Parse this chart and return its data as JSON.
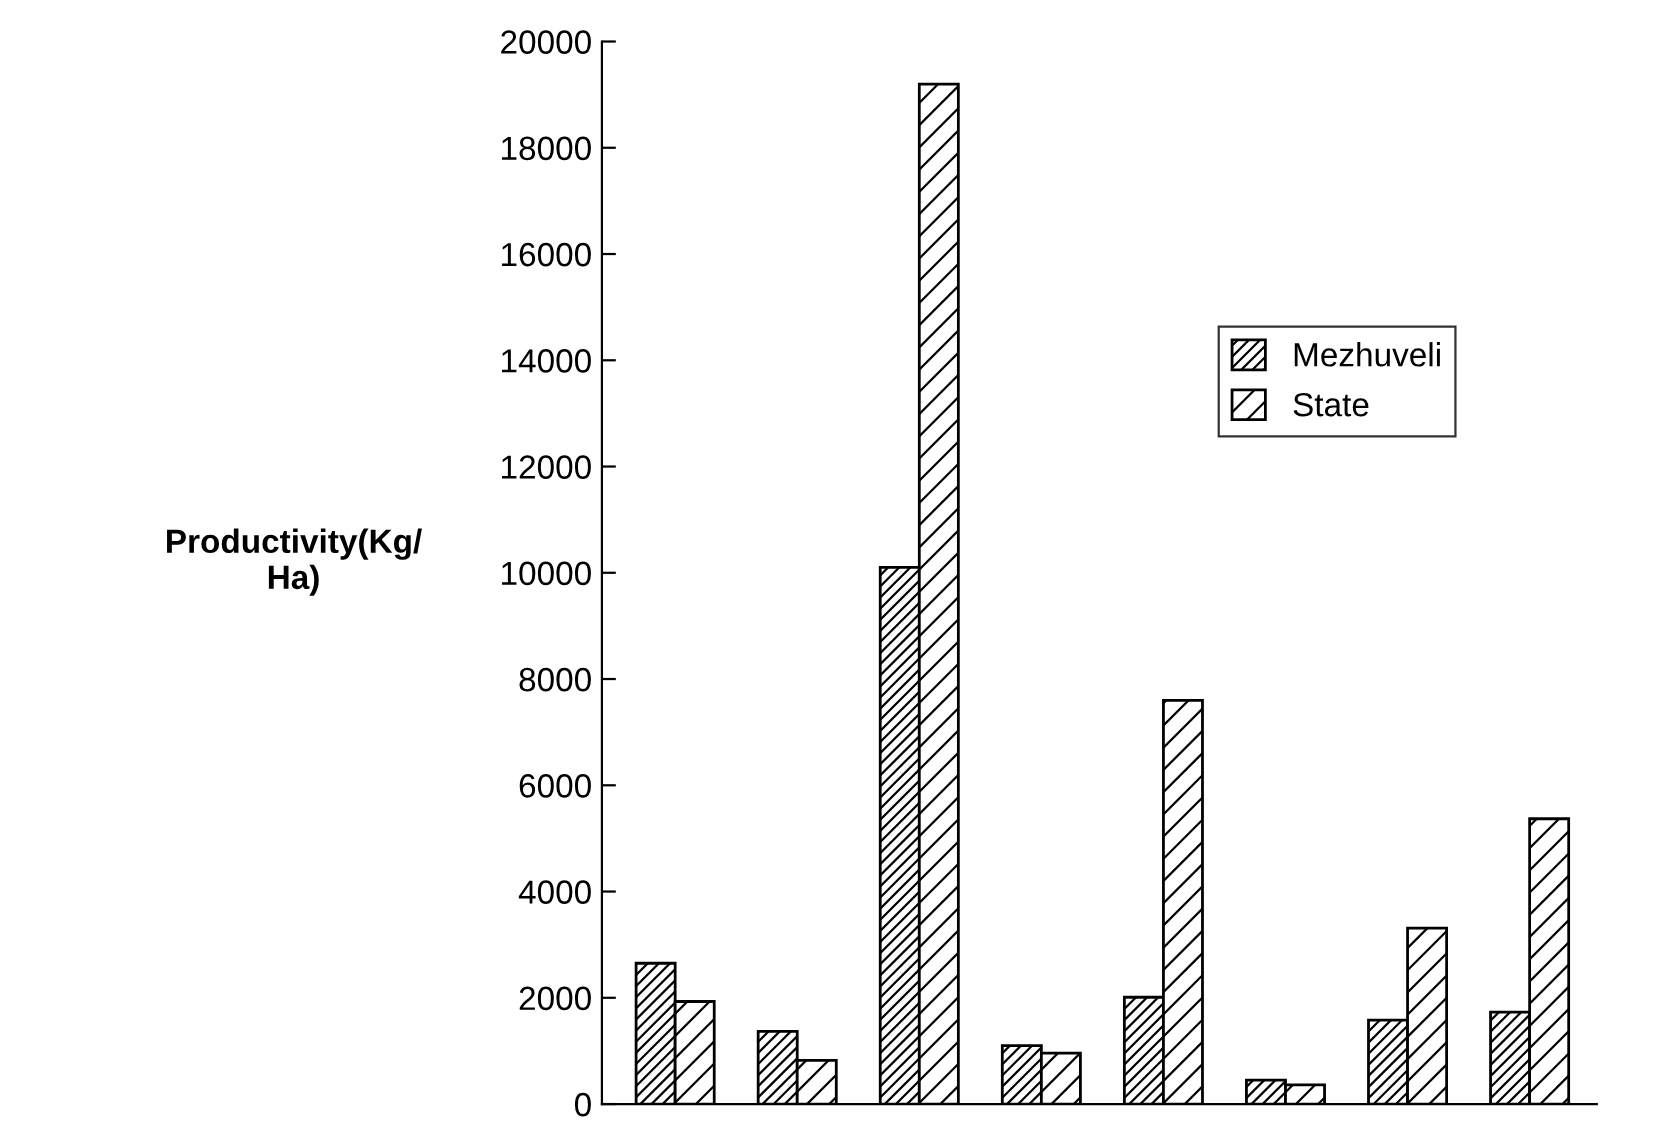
{
  "chart_data": {
    "type": "bar",
    "ylabel": "Productivity(Kg/\nHa)",
    "categories": [
      null,
      null,
      null,
      null,
      null,
      null,
      null,
      null
    ],
    "series": [
      {
        "name": "Mezhuveli",
        "color": "#000000",
        "values": [
          2650,
          1370,
          10100,
          1100,
          2010,
          450,
          1580,
          1730
        ]
      },
      {
        "name": "State",
        "color": "#000000",
        "values": [
          1930,
          820,
          19200,
          960,
          7600,
          360,
          3310,
          5370
        ]
      }
    ],
    "ylim": [
      0,
      20000
    ],
    "yticks": [
      0,
      2000,
      4000,
      6000,
      8000,
      10000,
      12000,
      14000,
      16000,
      18000,
      20000
    ],
    "tick_labels": "y",
    "grid": false,
    "legend": "right"
  }
}
